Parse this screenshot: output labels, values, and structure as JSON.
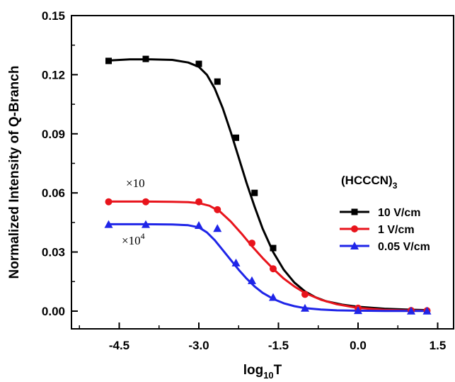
{
  "chart_data": {
    "type": "line",
    "title": "",
    "xlabel": "log",
    "xlabel_subscript": "10",
    "xlabel_suffix": "T",
    "ylabel": "Normalized Intensity of Q-Branch",
    "xlim": [
      -5.4,
      1.8
    ],
    "ylim": [
      -0.009,
      0.15
    ],
    "x_ticks": [
      -4.5,
      -3.0,
      -1.5,
      0.0,
      1.5
    ],
    "x_tick_labels": [
      "-4.5",
      "-3.0",
      "-1.5",
      "0.0",
      "1.5"
    ],
    "y_ticks": [
      0.0,
      0.03,
      0.06,
      0.09,
      0.12,
      0.15
    ],
    "y_tick_labels": [
      "0.00",
      "0.03",
      "0.06",
      "0.09",
      "0.12",
      "0.15"
    ],
    "grid": false,
    "legend": {
      "title": "(HCCCN)",
      "title_subscript": "3",
      "position": "right"
    },
    "annotations": [
      {
        "text": "×10",
        "superscript": ""
      },
      {
        "text": "×10",
        "superscript": "4"
      }
    ],
    "series": [
      {
        "name": "10 V/cm",
        "color": "#000000",
        "marker": "square",
        "x": [
          -4.7,
          -4.0,
          -3.0,
          -2.65,
          -2.3,
          -1.95,
          -1.6
        ],
        "y": [
          0.127,
          0.128,
          0.1255,
          0.1165,
          0.088,
          0.06,
          0.032
        ],
        "curve_x": [
          -4.7,
          -4.3,
          -3.9,
          -3.5,
          -3.2,
          -3.0,
          -2.85,
          -2.7,
          -2.55,
          -2.4,
          -2.25,
          -2.1,
          -1.95,
          -1.8,
          -1.6,
          -1.4,
          -1.2,
          -1.0,
          -0.8,
          -0.6,
          -0.3,
          0.0,
          0.5,
          1.0,
          1.3
        ],
        "curve_y": [
          0.1272,
          0.1278,
          0.1278,
          0.1275,
          0.1262,
          0.124,
          0.12,
          0.113,
          0.103,
          0.091,
          0.078,
          0.065,
          0.053,
          0.042,
          0.03,
          0.021,
          0.0145,
          0.01,
          0.007,
          0.005,
          0.0033,
          0.0022,
          0.0012,
          0.0007,
          0.0005
        ]
      },
      {
        "name": "1 V/cm",
        "color": "#e8141c",
        "marker": "circle",
        "x": [
          -4.7,
          -4.0,
          -3.0,
          -2.65,
          -2.0,
          -1.6,
          -1.0,
          0.0,
          1.0,
          1.3
        ],
        "y": [
          0.0555,
          0.0555,
          0.0555,
          0.0515,
          0.0345,
          0.0215,
          0.0085,
          0.0015,
          0.0003,
          0.0002
        ],
        "curve_x": [
          -4.7,
          -4.0,
          -3.5,
          -3.2,
          -3.0,
          -2.8,
          -2.6,
          -2.4,
          -2.2,
          -2.0,
          -1.8,
          -1.6,
          -1.4,
          -1.2,
          -1.0,
          -0.7,
          -0.4,
          0.0,
          0.5,
          1.0,
          1.3
        ],
        "curve_y": [
          0.0556,
          0.0556,
          0.0555,
          0.0553,
          0.0548,
          0.0535,
          0.0505,
          0.0455,
          0.0395,
          0.033,
          0.027,
          0.0215,
          0.0165,
          0.0125,
          0.0092,
          0.0058,
          0.0035,
          0.0016,
          0.0006,
          0.0003,
          0.0002
        ]
      },
      {
        "name": "0.05 V/cm",
        "color": "#1f25e8",
        "marker": "triangle",
        "x": [
          -4.7,
          -4.0,
          -3.0,
          -2.65,
          -2.3,
          -2.0,
          -1.6,
          -1.0,
          0.0,
          1.0,
          1.3
        ],
        "y": [
          0.044,
          0.044,
          0.0435,
          0.042,
          0.0245,
          0.0155,
          0.007,
          0.0015,
          0.0003,
          0.0001,
          0.0001
        ],
        "curve_x": [
          -4.7,
          -4.0,
          -3.5,
          -3.2,
          -3.0,
          -2.85,
          -2.7,
          -2.55,
          -2.4,
          -2.25,
          -2.1,
          -1.95,
          -1.8,
          -1.6,
          -1.4,
          -1.2,
          -1.0,
          -0.7,
          -0.4,
          0.0,
          0.5,
          1.0,
          1.3
        ],
        "curve_y": [
          0.0441,
          0.0441,
          0.044,
          0.0436,
          0.0425,
          0.04,
          0.036,
          0.031,
          0.026,
          0.021,
          0.0165,
          0.0125,
          0.0093,
          0.0062,
          0.004,
          0.0025,
          0.0015,
          0.0008,
          0.0004,
          0.0002,
          0.0001,
          0.0001,
          0.0001
        ]
      }
    ]
  }
}
